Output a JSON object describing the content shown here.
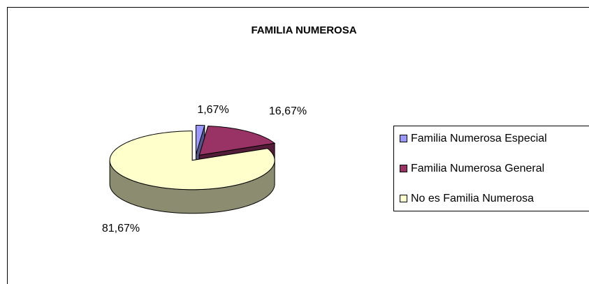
{
  "chart_data": {
    "type": "pie3d",
    "title": "FAMILIA NUMEROSA",
    "categories": [
      "Familia Numerosa Especial",
      "Familia Numerosa General",
      "No es Familia Numerosa"
    ],
    "values": [
      1.67,
      16.67,
      81.67
    ],
    "value_labels": [
      "1,67%",
      "16,67%",
      "81,67%"
    ],
    "colors": [
      "#9999ff",
      "#993366",
      "#ffffcc"
    ],
    "legend": "right"
  }
}
